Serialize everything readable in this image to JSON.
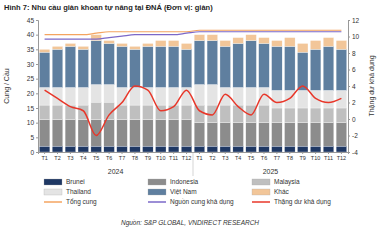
{
  "chart_data": {
    "type": "bar",
    "title": "Hình 7: Nhu cầu giàn khoan tự nâng tại ĐNÁ (Đơn vị: giàn)",
    "source": "Nguồn: S&P GLOBAL, VNDIRECT RESEARCH",
    "y_label": "Cung / Cầu",
    "y2_label": "Thặng dư khả dụng",
    "stacked": true,
    "grid": false,
    "legend": "bottom",
    "categories": [
      "T1",
      "T2",
      "T3",
      "T4",
      "T5",
      "T6",
      "T7",
      "T8",
      "T9",
      "T10",
      "T11",
      "T12",
      "T1",
      "T2",
      "T3",
      "T4",
      "T5",
      "T6",
      "T7",
      "T8",
      "T9",
      "T10",
      "T11",
      "T12"
    ],
    "x_groups": [
      "2024",
      "2025"
    ],
    "ylim": [
      0,
      45
    ],
    "yticks": [
      0,
      5,
      10,
      15,
      20,
      25,
      30,
      35,
      40,
      45
    ],
    "y2lim": [
      -4,
      12
    ],
    "y2ticks": [
      -4,
      -2,
      0,
      2,
      4,
      6,
      8,
      10,
      12
    ],
    "series": [
      {
        "name": "Brunei",
        "type": "bar",
        "color": "#1f3864",
        "values": [
          2,
          2,
          2,
          2,
          2,
          2,
          2,
          2,
          2,
          2,
          2,
          2,
          2,
          2,
          2,
          2,
          2,
          2,
          2,
          2,
          2,
          2,
          2,
          2
        ]
      },
      {
        "name": "Indonesia",
        "type": "bar",
        "color": "#8c8c8c",
        "values": [
          9,
          9,
          9,
          9,
          9,
          9,
          9,
          9,
          9,
          9,
          9,
          9,
          8,
          8,
          8,
          8,
          8,
          8,
          8,
          8,
          8,
          8,
          8,
          8
        ]
      },
      {
        "name": "Malaysia",
        "type": "bar",
        "color": "#bfbfbf",
        "values": [
          5,
          5,
          5,
          5,
          6,
          6,
          5,
          5,
          5,
          5,
          5,
          5,
          6,
          6,
          6,
          6,
          6,
          6,
          5,
          5,
          5,
          5,
          5,
          5
        ]
      },
      {
        "name": "Thailand",
        "type": "bar",
        "color": "#e4e4e4",
        "values": [
          6,
          6,
          6,
          6,
          6,
          6,
          6,
          6,
          6,
          6,
          6,
          6,
          7,
          7,
          6,
          6,
          6,
          6,
          6,
          6,
          6,
          6,
          6,
          6
        ]
      },
      {
        "name": "Việt Nam",
        "type": "bar",
        "color": "#5f7f9f",
        "values": [
          12,
          13,
          14,
          13,
          15,
          14,
          14,
          13,
          14,
          14,
          14,
          13,
          15,
          15,
          14,
          15,
          16,
          15,
          15,
          15,
          13,
          14,
          15,
          14
        ]
      },
      {
        "name": "Khác",
        "type": "bar",
        "color": "#f2c699",
        "values": [
          1,
          1,
          1,
          1,
          2,
          1,
          1,
          1,
          1,
          2,
          2,
          2,
          2,
          2,
          2,
          2,
          2,
          2,
          2,
          3,
          3,
          3,
          3,
          3
        ]
      },
      {
        "name": "Tổng cung",
        "type": "line",
        "color": "#f4a460",
        "values": [
          40,
          40,
          40,
          40,
          40.5,
          41,
          41,
          41,
          41,
          41,
          41,
          41,
          41.5,
          41.5,
          41.5,
          41.5,
          41.5,
          41.5,
          41.5,
          41.5,
          41.5,
          41.5,
          41.5,
          41.5
        ]
      },
      {
        "name": "Nguồn cung khả dụng",
        "type": "line",
        "color": "#7b68c8",
        "values": [
          38.5,
          38.5,
          38.5,
          38.5,
          38.5,
          39,
          39.5,
          40,
          40,
          40,
          40,
          40.5,
          41,
          41,
          41,
          41,
          41,
          41,
          41,
          41,
          41,
          41,
          41,
          41
        ]
      },
      {
        "name": "Thặng dư khả dụng",
        "type": "line",
        "axis": "y2",
        "color": "#e8372a",
        "values": [
          3.5,
          2.5,
          1.5,
          1,
          -2,
          0.5,
          2,
          4,
          3.5,
          1,
          1.5,
          3.5,
          1,
          0.5,
          3,
          1.5,
          0.5,
          3,
          2,
          2.5,
          4,
          2.5,
          2,
          2.5
        ]
      }
    ]
  }
}
